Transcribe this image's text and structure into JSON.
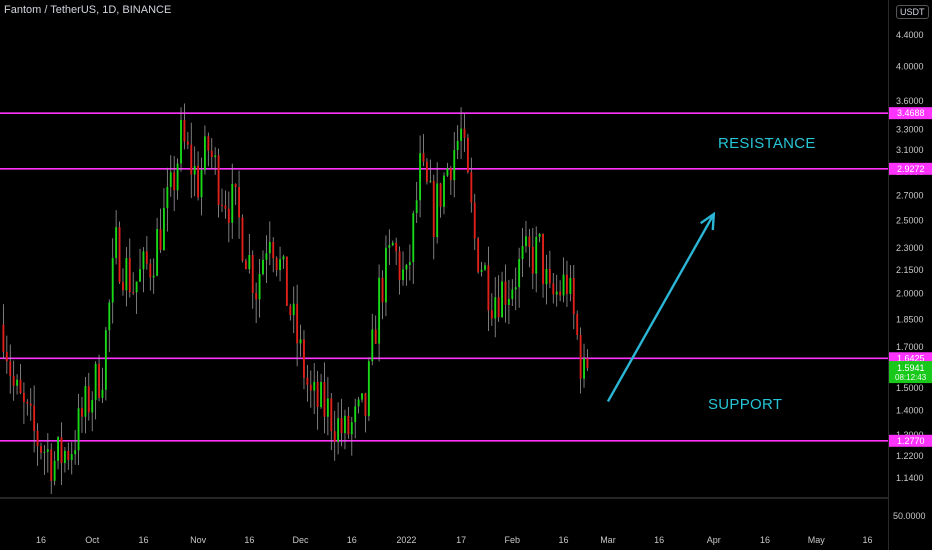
{
  "header": {
    "symbol_title": "Fantom / TetherUS, 1D, BINANCE",
    "currency": "USDT"
  },
  "annotations": {
    "resistance_label": "RESISTANCE",
    "support_label": "SUPPORT"
  },
  "colors": {
    "background": "#000000",
    "up_candle": "#18d818",
    "down_candle": "#e0201a",
    "level_line": "#ff33ff",
    "arrow": "#2bb6d6",
    "annotation_text": "#27c6d6",
    "axis_text": "#c8c8c8",
    "price_badge_bg": "#18c81a"
  },
  "chart_data": {
    "type": "candlestick",
    "scale": "log",
    "ylim": [
      1.0,
      5.0
    ],
    "y_ticks": [
      "4.4000",
      "4.0000",
      "3.6000",
      "3.3000",
      "3.1000",
      "2.9000",
      "2.7000",
      "2.5000",
      "2.3000",
      "2.1500",
      "2.0000",
      "1.8500",
      "1.7000",
      "1.5000",
      "1.4000",
      "1.3000",
      "1.2200",
      "1.1400"
    ],
    "x_labels": [
      {
        "label": "16",
        "date": "2021-09-16"
      },
      {
        "label": "Oct",
        "date": "2021-10-01"
      },
      {
        "label": "16",
        "date": "2021-10-16"
      },
      {
        "label": "Nov",
        "date": "2021-11-01"
      },
      {
        "label": "16",
        "date": "2021-11-16"
      },
      {
        "label": "Dec",
        "date": "2021-12-01"
      },
      {
        "label": "16",
        "date": "2021-12-16"
      },
      {
        "label": "2022",
        "date": "2022-01-01"
      },
      {
        "label": "17",
        "date": "2022-01-17"
      },
      {
        "label": "Feb",
        "date": "2022-02-01"
      },
      {
        "label": "16",
        "date": "2022-02-16"
      },
      {
        "label": "Mar",
        "date": "2022-03-01"
      },
      {
        "label": "16",
        "date": "2022-03-16"
      },
      {
        "label": "Apr",
        "date": "2022-04-01"
      },
      {
        "label": "16",
        "date": "2022-04-16"
      },
      {
        "label": "May",
        "date": "2022-05-01"
      },
      {
        "label": "16",
        "date": "2022-05-16"
      }
    ],
    "x_range": [
      "2021-09-04",
      "2022-05-22"
    ],
    "horizontal_levels": [
      {
        "label": "3.4688",
        "value": 3.4688
      },
      {
        "label": "2.9272",
        "value": 2.9272
      },
      {
        "label": "1.6425",
        "value": 1.6425
      },
      {
        "label": "1.2770",
        "value": 1.277
      }
    ],
    "last_price": {
      "value_label": "1.5941",
      "countdown_label": "08:12:43",
      "value": 1.5941
    },
    "volume_axis_label": "50.0000",
    "segments": [
      [
        "2021-09-05",
        1.82
      ],
      [
        "2021-09-08",
        1.5
      ],
      [
        "2021-09-14",
        1.3
      ],
      [
        "2021-09-20",
        1.2
      ],
      [
        "2021-09-25",
        1.26
      ],
      [
        "2021-09-30",
        1.45
      ],
      [
        "2021-10-04",
        1.6
      ],
      [
        "2021-10-08",
        2.3
      ],
      [
        "2021-10-13",
        2.05
      ],
      [
        "2021-10-18",
        2.2
      ],
      [
        "2021-10-24",
        2.7
      ],
      [
        "2021-10-27",
        3.2
      ],
      [
        "2021-11-01",
        2.82
      ],
      [
        "2021-11-04",
        3.12
      ],
      [
        "2021-11-08",
        2.75
      ],
      [
        "2021-11-12",
        2.58
      ],
      [
        "2021-11-18",
        2.05
      ],
      [
        "2021-11-22",
        2.48
      ],
      [
        "2021-11-28",
        1.9
      ],
      [
        "2021-12-04",
        1.45
      ],
      [
        "2021-12-09",
        1.4
      ],
      [
        "2021-12-14",
        1.3
      ],
      [
        "2021-12-20",
        1.4
      ],
      [
        "2021-12-24",
        2.0
      ],
      [
        "2021-12-28",
        2.3
      ],
      [
        "2022-01-01",
        2.05
      ],
      [
        "2022-01-05",
        2.9
      ],
      [
        "2022-01-09",
        2.55
      ],
      [
        "2022-01-14",
        3.05
      ],
      [
        "2022-01-17",
        3.25
      ],
      [
        "2022-01-21",
        2.35
      ],
      [
        "2022-01-26",
        2.0
      ],
      [
        "2022-01-31",
        2.05
      ],
      [
        "2022-02-04",
        2.2
      ],
      [
        "2022-02-09",
        2.28
      ],
      [
        "2022-02-12",
        1.95
      ],
      [
        "2022-02-17",
        2.08
      ],
      [
        "2022-02-22",
        1.55
      ],
      [
        "2022-02-23",
        1.59
      ]
    ],
    "arrow": {
      "from": [
        "2022-03-01",
        1.44
      ],
      "to": [
        "2022-04-01",
        2.55
      ]
    }
  }
}
